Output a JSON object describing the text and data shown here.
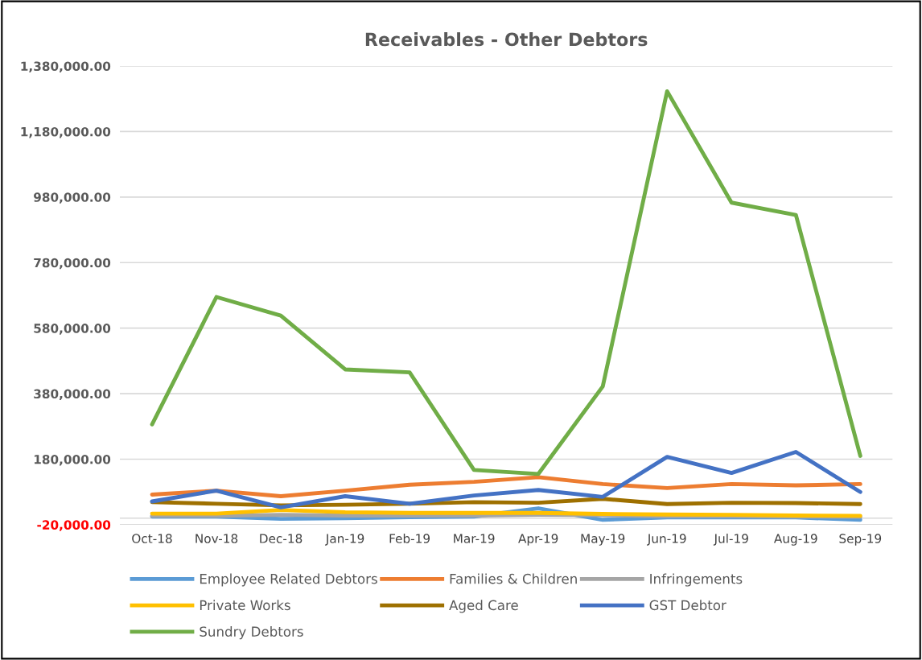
{
  "chart_data": {
    "type": "line",
    "title": "Receivables - Other Debtors",
    "categories": [
      "Oct-18",
      "Nov-18",
      "Dec-18",
      "Jan-19",
      "Feb-19",
      "Mar-19",
      "Apr-19",
      "May-19",
      "Jun-19",
      "Jul-19",
      "Aug-19",
      "Sep-19"
    ],
    "series": [
      {
        "name": "Employee Related Debtors",
        "color": "#5b9bd5",
        "values": [
          5000,
          5000,
          -2000,
          0,
          3000,
          5000,
          30000,
          -5000,
          2000,
          2000,
          2000,
          -5000
        ]
      },
      {
        "name": "Families & Children",
        "color": "#ed7d31",
        "values": [
          72000,
          84000,
          67000,
          84000,
          102000,
          111000,
          125000,
          104000,
          92000,
          104000,
          100000,
          104000
        ]
      },
      {
        "name": "Infringements",
        "color": "#a5a5a5",
        "values": [
          7000,
          7000,
          10000,
          8000,
          8000,
          8000,
          10000,
          9000,
          6000,
          6000,
          5000,
          4000
        ]
      },
      {
        "name": "Private Works",
        "color": "#ffc000",
        "values": [
          14000,
          14000,
          25000,
          18000,
          16000,
          16000,
          16000,
          13000,
          11000,
          10000,
          8000,
          7000
        ]
      },
      {
        "name": "Aged Care",
        "color": "#9e7000",
        "values": [
          49000,
          44000,
          39000,
          41000,
          44000,
          49000,
          47000,
          59000,
          43000,
          47000,
          46000,
          43000
        ]
      },
      {
        "name": "GST Debtor",
        "color": "#4472c4",
        "values": [
          51000,
          84000,
          33000,
          67000,
          44000,
          69000,
          86000,
          65000,
          187000,
          138000,
          202000,
          80000
        ]
      },
      {
        "name": "Sundry Debtors",
        "color": "#70ad47",
        "values": [
          286000,
          675000,
          618000,
          454000,
          445000,
          147000,
          135000,
          402000,
          1303000,
          963000,
          925000,
          190000
        ]
      }
    ],
    "ylim": [
      -20000,
      1380000
    ],
    "yticks": [
      {
        "value": -20000,
        "label": "-20,000.00"
      },
      {
        "value": 180000,
        "label": "180,000.00"
      },
      {
        "value": 380000,
        "label": "380,000.00"
      },
      {
        "value": 580000,
        "label": "580,000.00"
      },
      {
        "value": 780000,
        "label": "780,000.00"
      },
      {
        "value": 980000,
        "label": "980,000.00"
      },
      {
        "value": 1180000,
        "label": "1,180,000.00"
      },
      {
        "value": 1380000,
        "label": "1,380,000.00"
      }
    ],
    "grid": "y",
    "legend": "bottom",
    "marker": "none",
    "line_style": "solid"
  }
}
